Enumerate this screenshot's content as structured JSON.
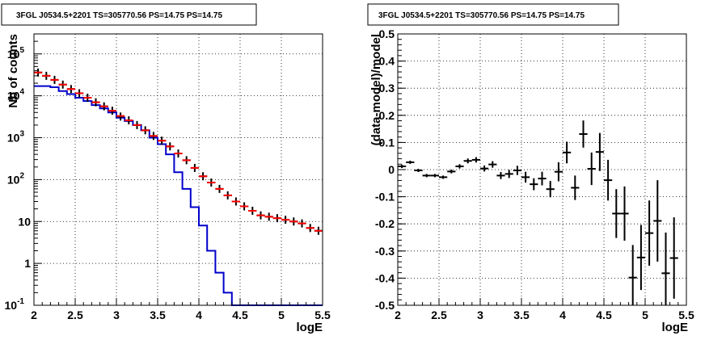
{
  "chart_data": [
    {
      "type": "line",
      "title": "3FGL J0534.5+2201 TS=305770.56 PS=14.75 PS=14.75",
      "xlabel": "logE",
      "ylabel": "Nb of counts",
      "xlim": [
        2,
        5.5
      ],
      "ylim": [
        0.1,
        300000
      ],
      "yscale": "log",
      "grid": true,
      "x_ticks": [
        "2",
        "2.5",
        "3",
        "3.5",
        "4",
        "4.5",
        "5",
        "5.5"
      ],
      "y_ticks": [
        {
          "base": "10",
          "exp": "-1"
        },
        {
          "base": "1",
          "exp": ""
        },
        {
          "base": "10",
          "exp": ""
        },
        {
          "base": "10",
          "exp": "2"
        },
        {
          "base": "10",
          "exp": "3"
        },
        {
          "base": "10",
          "exp": "4"
        },
        {
          "base": "10",
          "exp": "5"
        }
      ],
      "bin_edges": [
        2.0,
        2.1,
        2.2,
        2.3,
        2.4,
        2.5,
        2.6,
        2.7,
        2.8,
        2.9,
        3.0,
        3.1,
        3.2,
        3.3,
        3.4,
        3.5,
        3.6,
        3.7,
        3.8,
        3.9,
        4.0,
        4.1,
        4.2,
        4.3,
        4.4,
        4.5,
        4.6,
        4.7,
        4.8,
        4.9,
        5.0,
        5.1,
        5.2,
        5.3,
        5.4,
        5.5
      ],
      "series": [
        {
          "color": "#000000",
          "style": "points",
          "x": [
            2.05,
            2.15,
            2.25,
            2.35,
            2.45,
            2.55,
            2.65,
            2.75,
            2.85,
            2.95,
            3.05,
            3.15,
            3.25,
            3.35,
            3.45,
            3.55,
            3.65,
            3.75,
            3.85,
            3.95,
            4.05,
            4.15,
            4.25,
            4.35,
            4.45,
            4.55,
            4.65,
            4.75,
            4.85,
            4.95,
            5.05,
            5.15,
            5.25,
            5.35,
            5.45
          ],
          "values": [
            36000,
            30000,
            24000,
            18500,
            14500,
            11500,
            9000,
            7000,
            5600,
            4400,
            3200,
            2600,
            2000,
            1500,
            1100,
            850,
            620,
            420,
            290,
            190,
            120,
            85,
            60,
            42,
            30,
            23,
            18,
            14,
            13,
            12,
            11,
            10,
            9,
            7,
            6
          ]
        },
        {
          "color": "#ff0000",
          "style": "points",
          "x": [
            2.05,
            2.15,
            2.25,
            2.35,
            2.45,
            2.55,
            2.65,
            2.75,
            2.85,
            2.95,
            3.05,
            3.15,
            3.25,
            3.35,
            3.45,
            3.55,
            3.65,
            3.75,
            3.85,
            3.95,
            4.05,
            4.15,
            4.25,
            4.35,
            4.45,
            4.55,
            4.65,
            4.75,
            4.85,
            4.95,
            5.05,
            5.15,
            5.25,
            5.35,
            5.45
          ],
          "values": [
            36000,
            30000,
            24000,
            18500,
            14500,
            11500,
            9000,
            7000,
            5600,
            4400,
            3300,
            2600,
            2000,
            1500,
            1100,
            850,
            620,
            420,
            290,
            190,
            120,
            85,
            60,
            42,
            30,
            23,
            18,
            14,
            13,
            12,
            11,
            10,
            9,
            7,
            6
          ]
        },
        {
          "color": "#0000cc",
          "style": "step",
          "values": [
            17000,
            17000,
            16000,
            13000,
            11000,
            9000,
            7500,
            6000,
            5000,
            4000,
            3000,
            2500,
            2000,
            1500,
            1000,
            700,
            400,
            150,
            60,
            22,
            8,
            2,
            0.6,
            0.2,
            0.1,
            0.1,
            0.1,
            0.1,
            0.1,
            0.1,
            0.1,
            0.1,
            0.1,
            0.1,
            0.1
          ]
        }
      ]
    },
    {
      "type": "scatter",
      "title": "3FGL J0534.5+2201 TS=305770.56 PS=14.75 PS=14.75",
      "xlabel": "logE",
      "ylabel": "(data-model)/model",
      "xlim": [
        2,
        5.5
      ],
      "ylim": [
        -0.5,
        0.5
      ],
      "grid": true,
      "x_ticks": [
        "2",
        "2.5",
        "3",
        "3.5",
        "4",
        "4.5",
        "5",
        "5.5"
      ],
      "y_ticks": [
        "-0.5",
        "-0.4",
        "-0.3",
        "-0.2",
        "-0.1",
        "0",
        "0.1",
        "0.2",
        "0.3",
        "0.4",
        "0.5"
      ],
      "series": [
        {
          "color": "#000000",
          "x": [
            2.05,
            2.15,
            2.25,
            2.35,
            2.45,
            2.55,
            2.65,
            2.75,
            2.85,
            2.95,
            3.05,
            3.15,
            3.25,
            3.35,
            3.45,
            3.55,
            3.65,
            3.75,
            3.85,
            3.95,
            4.05,
            4.15,
            4.25,
            4.35,
            4.45,
            4.55,
            4.65,
            4.75,
            4.85,
            4.95,
            5.05,
            5.15,
            5.25,
            5.35
          ],
          "values": [
            0.012,
            0.027,
            -0.003,
            -0.022,
            -0.022,
            -0.028,
            -0.007,
            0.012,
            0.032,
            0.036,
            0.004,
            0.019,
            -0.022,
            -0.016,
            -0.003,
            -0.028,
            -0.054,
            -0.033,
            -0.072,
            -0.008,
            0.063,
            -0.067,
            0.131,
            0.003,
            0.065,
            -0.039,
            -0.162,
            -0.162,
            -0.398,
            -0.324,
            -0.234,
            -0.189,
            -0.382,
            -0.326
          ],
          "errors": [
            0.006,
            0.006,
            0.006,
            0.006,
            0.006,
            0.006,
            0.007,
            0.008,
            0.009,
            0.01,
            0.011,
            0.012,
            0.013,
            0.015,
            0.017,
            0.02,
            0.022,
            0.025,
            0.03,
            0.035,
            0.04,
            0.045,
            0.05,
            0.06,
            0.07,
            0.075,
            0.09,
            0.1,
            0.12,
            0.12,
            0.12,
            0.15,
            0.15,
            0.15
          ]
        }
      ]
    }
  ]
}
